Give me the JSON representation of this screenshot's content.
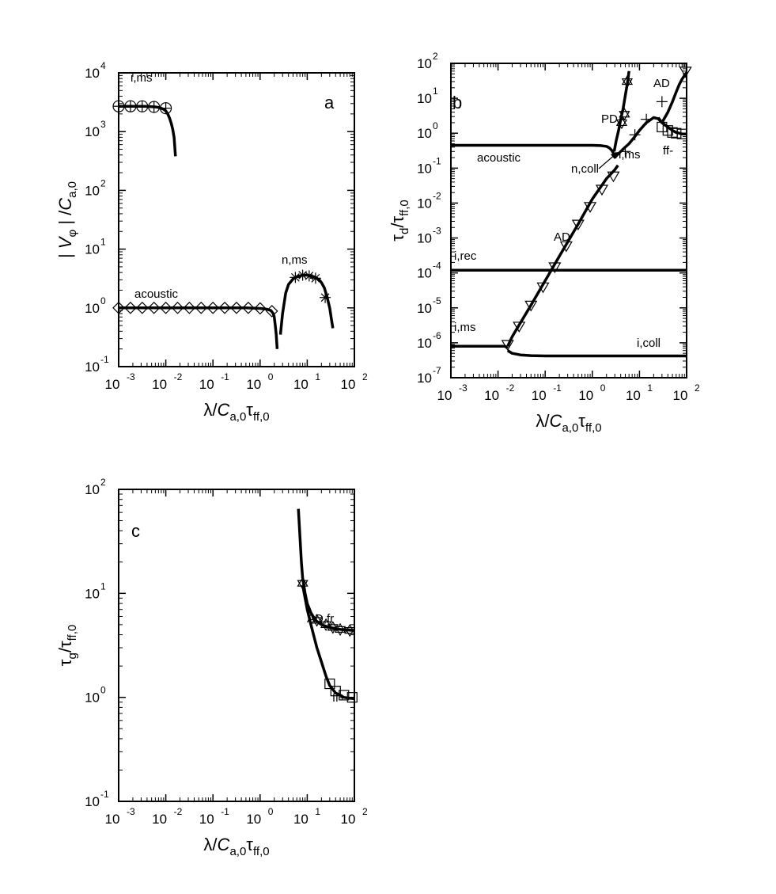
{
  "chart_data": [
    {
      "panel": "a",
      "type": "line",
      "panel_letter": "a",
      "xscale": "log",
      "yscale": "log",
      "xlim": [
        0.001,
        100
      ],
      "ylim": [
        0.1,
        10000
      ],
      "xlabel": "λ/C_a,0 τ_ff,0",
      "ylabel": "| V_φ | /C_a,0",
      "x_tick_exponents": [
        "-3",
        "-2",
        "-1",
        "0",
        "1",
        "2"
      ],
      "y_tick_exponents": [
        "-1",
        "0",
        "1",
        "2",
        "3",
        "4"
      ],
      "series": [
        {
          "name": "i,ms",
          "marker": "circle-cross",
          "x": [
            0.001,
            0.0015,
            0.002,
            0.003,
            0.004,
            0.005,
            0.006,
            0.007,
            0.008,
            0.009,
            0.01,
            0.011,
            0.012,
            0.013,
            0.014,
            0.015,
            0.016
          ],
          "y": [
            2700,
            2700,
            2700,
            2690,
            2680,
            2660,
            2630,
            2580,
            2500,
            2400,
            2250,
            2000,
            1700,
            1400,
            1100,
            800,
            380
          ],
          "marker_x": [
            0.001,
            0.00178,
            0.00316,
            0.00562,
            0.01
          ],
          "marker_y": [
            2700,
            2700,
            2690,
            2630,
            2500
          ]
        },
        {
          "name": "acoustic",
          "marker": "diamond",
          "x": [
            0.001,
            0.002,
            0.005,
            0.01,
            0.02,
            0.05,
            0.1,
            0.2,
            0.5,
            1,
            1.4,
            1.7,
            1.9,
            2.0,
            2.1,
            2.2,
            2.3
          ],
          "y": [
            1.0,
            1.0,
            1.0,
            1.0,
            1.0,
            1.0,
            1.0,
            1.0,
            1.0,
            0.98,
            0.95,
            0.9,
            0.8,
            0.7,
            0.5,
            0.35,
            0.2
          ],
          "marker_x": [
            0.001,
            0.00178,
            0.00316,
            0.00562,
            0.01,
            0.0178,
            0.0316,
            0.0562,
            0.1,
            0.178,
            0.316,
            0.562,
            1,
            1.78
          ],
          "marker_y": [
            1,
            1,
            1,
            1,
            1,
            1,
            1,
            1,
            1,
            1,
            1,
            1,
            0.98,
            0.88
          ]
        },
        {
          "name": "n,ms",
          "marker": "asterisk",
          "x": [
            2.7,
            3.0,
            3.5,
            4,
            5,
            6,
            7,
            8,
            10,
            12,
            15,
            18,
            20,
            23,
            26,
            30,
            33,
            35
          ],
          "y": [
            0.35,
            0.8,
            1.8,
            2.5,
            3.1,
            3.4,
            3.5,
            3.6,
            3.6,
            3.5,
            3.3,
            3.0,
            2.7,
            2.2,
            1.6,
            1.0,
            0.6,
            0.45
          ],
          "marker_x": [
            5.6,
            8,
            11,
            15,
            24
          ],
          "marker_y": [
            3.3,
            3.6,
            3.5,
            3.2,
            1.5
          ]
        }
      ]
    },
    {
      "panel": "b",
      "type": "line",
      "panel_letter": "b",
      "xscale": "log",
      "yscale": "log",
      "xlim": [
        0.001,
        100
      ],
      "ylim": [
        1e-07,
        100
      ],
      "xlabel": "λ/C_a,0 τ_ff,0",
      "ylabel": "τ_d/τ_ff,0",
      "x_tick_exponents": [
        "-3",
        "-2",
        "-1",
        "0",
        "1",
        "2"
      ],
      "y_tick_exponents": [
        "-7",
        "-6",
        "-5",
        "-4",
        "-3",
        "-2",
        "-1",
        "0",
        "1",
        "2"
      ],
      "series": [
        {
          "name": "acoustic",
          "x": [
            0.001,
            0.01,
            0.1,
            1,
            1.5,
            2,
            2.3,
            2.6,
            2.9,
            3.0
          ],
          "y": [
            0.45,
            0.45,
            0.45,
            0.45,
            0.44,
            0.42,
            0.38,
            0.32,
            0.25,
            0.2
          ]
        },
        {
          "name": "PD",
          "marker": "star",
          "x": [
            2.9,
            3.2,
            3.6,
            4,
            4.5,
            5,
            5.5,
            6
          ],
          "y": [
            0.3,
            0.6,
            1.2,
            2.5,
            5,
            12,
            25,
            60
          ],
          "marker_x": [
            4.2,
            4.8,
            5.5
          ],
          "marker_y": [
            2,
            3.5,
            30
          ]
        },
        {
          "name": "n,ms",
          "marker": "plus",
          "x": [
            2.9,
            3.5,
            4.5,
            6,
            8,
            10,
            14,
            20,
            25,
            30,
            40
          ],
          "y": [
            0.2,
            0.25,
            0.35,
            0.5,
            0.8,
            1.2,
            2,
            2.8,
            2.6,
            2.0,
            1.5
          ],
          "marker_x": [
            5,
            8,
            14,
            30
          ],
          "marker_y": [
            0.3,
            0.9,
            2.5,
            8
          ]
        },
        {
          "name": "AD",
          "marker": "triangle-down",
          "x": [
            0.016,
            0.02,
            0.05,
            0.1,
            0.2,
            0.5,
            1,
            2,
            3,
            3.5
          ],
          "y": [
            8e-07,
            1.5e-06,
            1.2e-05,
            6e-05,
            0.0003,
            0.0025,
            0.013,
            0.05,
            0.09,
            0.12
          ],
          "marker_x": [
            0.016,
            0.028,
            0.05,
            0.09,
            0.16,
            0.28,
            0.5,
            0.9,
            1.6,
            2.8
          ],
          "marker_y": [
            9e-07,
            3e-06,
            1.2e-05,
            4e-05,
            0.00015,
            0.0006,
            0.0025,
            0.008,
            0.025,
            0.06
          ]
        },
        {
          "name": "AD",
          "marker": "triangle-down",
          "x": [
            30,
            40,
            50,
            60,
            70,
            80,
            90,
            100
          ],
          "y": [
            2.0,
            4,
            8,
            15,
            25,
            35,
            45,
            55
          ],
          "marker_x": [
            95
          ],
          "marker_y": [
            60
          ]
        },
        {
          "name": "ff-",
          "marker": "square",
          "x": [
            25,
            30,
            40,
            50,
            60,
            70,
            80,
            90,
            100
          ],
          "y": [
            2.8,
            2.0,
            1.5,
            1.2,
            1.05,
            1.0,
            0.95,
            0.95,
            0.95
          ],
          "marker_x": [
            30,
            40,
            50,
            60,
            80
          ],
          "marker_y": [
            1.5,
            1.2,
            1.05,
            1.0,
            0.95
          ]
        },
        {
          "name": "i,rec",
          "x": [
            0.001,
            100
          ],
          "y": [
            0.00012,
            0.00012
          ]
        },
        {
          "name": "i,ms",
          "x": [
            0.001,
            0.01,
            0.014,
            0.016
          ],
          "y": [
            8e-07,
            8e-07,
            8e-07,
            7e-07
          ]
        },
        {
          "name": "i,coll",
          "x": [
            0.016,
            0.02,
            0.03,
            0.05,
            0.1,
            1,
            10,
            100
          ],
          "y": [
            6e-07,
            5e-07,
            4.5e-07,
            4.3e-07,
            4.2e-07,
            4.2e-07,
            4.2e-07,
            4.2e-07
          ]
        }
      ],
      "annotations": [
        "i,rec",
        "i,ms",
        "i,coll",
        "acoustic",
        "PD",
        "n,coll",
        "n,ms",
        "AD",
        "AD",
        "ff-"
      ]
    },
    {
      "panel": "c",
      "type": "line",
      "panel_letter": "c",
      "xscale": "log",
      "yscale": "log",
      "xlim": [
        0.001,
        100
      ],
      "ylim": [
        0.1,
        100
      ],
      "xlabel": "λ/C_a,0 τ_ff,0",
      "ylabel": "τ_g/τ_ff,0",
      "x_tick_exponents": [
        "-3",
        "-2",
        "-1",
        "0",
        "1",
        "2"
      ],
      "y_tick_exponents": [
        "-1",
        "0",
        "1",
        "2"
      ],
      "series": [
        {
          "name": "AD,fr",
          "marker": "star",
          "x": [
            6.5,
            7,
            7.5,
            8,
            9,
            10,
            12,
            15,
            20,
            30,
            50,
            100
          ],
          "y": [
            65,
            35,
            20,
            14,
            10,
            8,
            6.5,
            5.5,
            5,
            4.7,
            4.5,
            4.4
          ],
          "marker_x": [
            8,
            16,
            25,
            35,
            50,
            80
          ],
          "marker_y": [
            12.5,
            5.5,
            5,
            4.7,
            4.5,
            4.4
          ]
        },
        {
          "name": "ff+",
          "marker": "square",
          "x": [
            8,
            10,
            12,
            14,
            16,
            20,
            25,
            30,
            40,
            50,
            60,
            80,
            100
          ],
          "y": [
            12,
            7,
            5,
            3.8,
            3,
            2.2,
            1.6,
            1.3,
            1.1,
            1.05,
            1.0,
            0.98,
            0.97
          ],
          "marker_x": [
            30,
            40,
            60,
            90
          ],
          "marker_y": [
            1.35,
            1.15,
            1.05,
            1.0
          ]
        }
      ],
      "annotations": [
        "AD,fr",
        "ff+"
      ]
    }
  ]
}
